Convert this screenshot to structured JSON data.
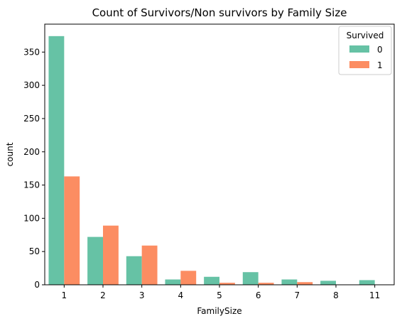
{
  "chart_data": {
    "type": "bar",
    "title": "Count of Survivors/Non survivors by Family Size",
    "xlabel": "FamilySize",
    "ylabel": "count",
    "categories": [
      "1",
      "2",
      "3",
      "4",
      "5",
      "6",
      "7",
      "8",
      "11"
    ],
    "series": [
      {
        "name": "0",
        "values": [
          374,
          72,
          43,
          8,
          12,
          19,
          8,
          6,
          7
        ],
        "color": "#66c2a5"
      },
      {
        "name": "1",
        "values": [
          163,
          89,
          59,
          21,
          3,
          3,
          4,
          0,
          0
        ],
        "color": "#fc8d62"
      }
    ],
    "ylim": [
      0,
      392
    ],
    "yticks": [
      0,
      50,
      100,
      150,
      200,
      250,
      300,
      350
    ],
    "grid": false,
    "legend": {
      "title": "Survived",
      "placement": "top-right"
    }
  }
}
